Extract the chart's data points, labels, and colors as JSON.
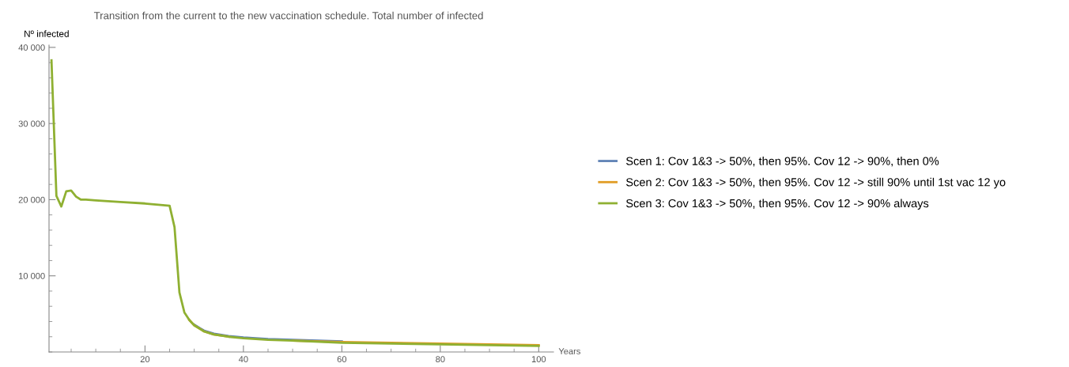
{
  "chart_data": {
    "type": "line",
    "title": "Transition from the current to the new vaccination schedule. Total number of infected",
    "ylabel": "Nº infected",
    "xlabel": "Years",
    "xlim": [
      0.5,
      103
    ],
    "xticks": [
      20,
      40,
      60,
      80,
      100
    ],
    "ylim": [
      0,
      40300
    ],
    "yticks": [
      {
        "value": 10000,
        "label": "10 000"
      },
      {
        "value": 20000,
        "label": "20 000"
      },
      {
        "value": 30000,
        "label": "30 000"
      },
      {
        "value": 40000,
        "label": "40 000"
      }
    ],
    "grid": false,
    "legend": "right",
    "marker": "none",
    "line_style": "solid",
    "x": [
      1,
      2,
      3,
      4,
      5,
      6,
      7,
      8,
      10,
      15,
      20,
      25,
      26,
      27,
      28,
      29,
      30,
      32,
      34,
      37,
      40,
      45,
      50,
      60,
      70,
      80,
      90,
      100
    ],
    "series": [
      {
        "name": "Scen 1: Cov 1&3 -> 50%, then 95%. Cov 12 -> 90%, then 0%",
        "color": "#5e81b5",
        "values": [
          null,
          null,
          null,
          null,
          null,
          null,
          null,
          null,
          null,
          null,
          null,
          null,
          null,
          null,
          null,
          null,
          3600,
          2800,
          2400,
          2100,
          1900,
          1700,
          1600,
          1400,
          null,
          null,
          null,
          null
        ]
      },
      {
        "name": "Scen 2: Cov 1&3 -> 50%, then 95%. Cov 12 -> still 90% until 1st vac 12 yo",
        "color": "#e19c24",
        "values": [
          null,
          null,
          null,
          null,
          null,
          null,
          null,
          null,
          null,
          null,
          null,
          null,
          null,
          null,
          null,
          4200,
          3500,
          2700,
          2300,
          2000,
          null,
          null,
          1500,
          1300,
          1200,
          1100,
          1000,
          900
        ]
      },
      {
        "name": "Scen 3: Cov 1&3 -> 50%, then 95%. Cov 12 -> 90% always",
        "color": "#8fb032",
        "values": [
          38300,
          20500,
          19100,
          21100,
          21200,
          20400,
          20000,
          20000,
          19900,
          19700,
          19500,
          19200,
          16400,
          7800,
          5200,
          4200,
          3500,
          2700,
          2300,
          2000,
          1800,
          1600,
          1500,
          1200,
          1100,
          1000,
          900,
          800
        ]
      }
    ]
  }
}
